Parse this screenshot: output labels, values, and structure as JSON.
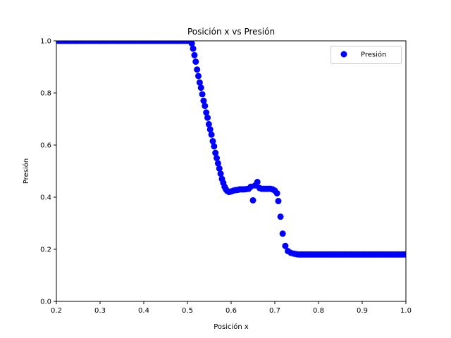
{
  "chart_data": {
    "type": "scatter",
    "title": "Posición x vs Presión",
    "xlabel": "Posición x",
    "ylabel": "Presión",
    "xlim": [
      0.2,
      1.0
    ],
    "ylim": [
      0.0,
      1.0
    ],
    "x_ticks": [
      "0.2",
      "0.3",
      "0.4",
      "0.5",
      "0.6",
      "0.7",
      "0.8",
      "0.9",
      "1.0"
    ],
    "y_ticks": [
      "0.0",
      "0.2",
      "0.4",
      "0.6",
      "0.8",
      "1.0"
    ],
    "grid": false,
    "legend_position": "top-right",
    "marker_color": "#0000ff",
    "series": [
      {
        "name": "Presión",
        "points": [
          [
            0.2,
            1.0
          ],
          [
            0.205,
            1.0
          ],
          [
            0.21,
            1.0
          ],
          [
            0.215,
            1.0
          ],
          [
            0.22,
            1.0
          ],
          [
            0.225,
            1.0
          ],
          [
            0.23,
            1.0
          ],
          [
            0.235,
            1.0
          ],
          [
            0.24,
            1.0
          ],
          [
            0.245,
            1.0
          ],
          [
            0.25,
            1.0
          ],
          [
            0.255,
            1.0
          ],
          [
            0.26,
            1.0
          ],
          [
            0.265,
            1.0
          ],
          [
            0.27,
            1.0
          ],
          [
            0.275,
            1.0
          ],
          [
            0.28,
            1.0
          ],
          [
            0.285,
            1.0
          ],
          [
            0.29,
            1.0
          ],
          [
            0.295,
            1.0
          ],
          [
            0.3,
            1.0
          ],
          [
            0.305,
            1.0
          ],
          [
            0.31,
            1.0
          ],
          [
            0.315,
            1.0
          ],
          [
            0.32,
            1.0
          ],
          [
            0.325,
            1.0
          ],
          [
            0.33,
            1.0
          ],
          [
            0.335,
            1.0
          ],
          [
            0.34,
            1.0
          ],
          [
            0.345,
            1.0
          ],
          [
            0.35,
            1.0
          ],
          [
            0.355,
            1.0
          ],
          [
            0.36,
            1.0
          ],
          [
            0.365,
            1.0
          ],
          [
            0.37,
            1.0
          ],
          [
            0.375,
            1.0
          ],
          [
            0.38,
            1.0
          ],
          [
            0.385,
            1.0
          ],
          [
            0.39,
            1.0
          ],
          [
            0.395,
            1.0
          ],
          [
            0.4,
            1.0
          ],
          [
            0.405,
            1.0
          ],
          [
            0.41,
            1.0
          ],
          [
            0.415,
            1.0
          ],
          [
            0.42,
            1.0
          ],
          [
            0.425,
            1.0
          ],
          [
            0.43,
            1.0
          ],
          [
            0.435,
            1.0
          ],
          [
            0.44,
            1.0
          ],
          [
            0.445,
            1.0
          ],
          [
            0.45,
            1.0
          ],
          [
            0.455,
            1.0
          ],
          [
            0.46,
            1.0
          ],
          [
            0.465,
            1.0
          ],
          [
            0.47,
            1.0
          ],
          [
            0.475,
            1.0
          ],
          [
            0.48,
            1.0
          ],
          [
            0.485,
            1.0
          ],
          [
            0.49,
            1.0
          ],
          [
            0.495,
            1.0
          ],
          [
            0.5,
            1.0
          ],
          [
            0.505,
            1.0
          ],
          [
            0.51,
            0.99
          ],
          [
            0.513,
            0.97
          ],
          [
            0.516,
            0.945
          ],
          [
            0.519,
            0.92
          ],
          [
            0.522,
            0.89
          ],
          [
            0.525,
            0.865
          ],
          [
            0.528,
            0.84
          ],
          [
            0.531,
            0.82
          ],
          [
            0.534,
            0.795
          ],
          [
            0.537,
            0.77
          ],
          [
            0.54,
            0.75
          ],
          [
            0.543,
            0.725
          ],
          [
            0.546,
            0.705
          ],
          [
            0.549,
            0.68
          ],
          [
            0.552,
            0.66
          ],
          [
            0.555,
            0.64
          ],
          [
            0.558,
            0.615
          ],
          [
            0.561,
            0.595
          ],
          [
            0.564,
            0.57
          ],
          [
            0.567,
            0.55
          ],
          [
            0.57,
            0.53
          ],
          [
            0.573,
            0.51
          ],
          [
            0.576,
            0.49
          ],
          [
            0.579,
            0.47
          ],
          [
            0.582,
            0.455
          ],
          [
            0.585,
            0.44
          ],
          [
            0.588,
            0.43
          ],
          [
            0.591,
            0.424
          ],
          [
            0.595,
            0.42
          ],
          [
            0.6,
            0.422
          ],
          [
            0.605,
            0.425
          ],
          [
            0.61,
            0.427
          ],
          [
            0.615,
            0.428
          ],
          [
            0.62,
            0.43
          ],
          [
            0.625,
            0.43
          ],
          [
            0.63,
            0.43
          ],
          [
            0.635,
            0.431
          ],
          [
            0.64,
            0.432
          ],
          [
            0.645,
            0.44
          ],
          [
            0.65,
            0.388
          ],
          [
            0.655,
            0.445
          ],
          [
            0.66,
            0.458
          ],
          [
            0.665,
            0.435
          ],
          [
            0.67,
            0.432
          ],
          [
            0.675,
            0.432
          ],
          [
            0.68,
            0.432
          ],
          [
            0.685,
            0.432
          ],
          [
            0.69,
            0.432
          ],
          [
            0.695,
            0.43
          ],
          [
            0.7,
            0.425
          ],
          [
            0.705,
            0.415
          ],
          [
            0.708,
            0.385
          ],
          [
            0.713,
            0.325
          ],
          [
            0.718,
            0.26
          ],
          [
            0.724,
            0.213
          ],
          [
            0.73,
            0.193
          ],
          [
            0.737,
            0.186
          ],
          [
            0.744,
            0.183
          ],
          [
            0.75,
            0.181
          ],
          [
            0.755,
            0.18
          ],
          [
            0.76,
            0.18
          ],
          [
            0.765,
            0.18
          ],
          [
            0.77,
            0.18
          ],
          [
            0.775,
            0.18
          ],
          [
            0.78,
            0.18
          ],
          [
            0.785,
            0.18
          ],
          [
            0.79,
            0.18
          ],
          [
            0.795,
            0.18
          ],
          [
            0.8,
            0.18
          ],
          [
            0.805,
            0.18
          ],
          [
            0.81,
            0.18
          ],
          [
            0.815,
            0.18
          ],
          [
            0.82,
            0.18
          ],
          [
            0.825,
            0.18
          ],
          [
            0.83,
            0.18
          ],
          [
            0.835,
            0.18
          ],
          [
            0.84,
            0.18
          ],
          [
            0.845,
            0.18
          ],
          [
            0.85,
            0.18
          ],
          [
            0.855,
            0.18
          ],
          [
            0.86,
            0.18
          ],
          [
            0.865,
            0.18
          ],
          [
            0.87,
            0.18
          ],
          [
            0.875,
            0.18
          ],
          [
            0.88,
            0.18
          ],
          [
            0.885,
            0.18
          ],
          [
            0.89,
            0.18
          ],
          [
            0.895,
            0.18
          ],
          [
            0.9,
            0.18
          ],
          [
            0.905,
            0.18
          ],
          [
            0.91,
            0.18
          ],
          [
            0.915,
            0.18
          ],
          [
            0.92,
            0.18
          ],
          [
            0.925,
            0.18
          ],
          [
            0.93,
            0.18
          ],
          [
            0.935,
            0.18
          ],
          [
            0.94,
            0.18
          ],
          [
            0.945,
            0.18
          ],
          [
            0.95,
            0.18
          ],
          [
            0.955,
            0.18
          ],
          [
            0.96,
            0.18
          ],
          [
            0.965,
            0.18
          ],
          [
            0.97,
            0.18
          ],
          [
            0.975,
            0.18
          ],
          [
            0.98,
            0.18
          ],
          [
            0.985,
            0.18
          ],
          [
            0.99,
            0.18
          ],
          [
            0.995,
            0.18
          ],
          [
            1.0,
            0.18
          ]
        ]
      }
    ]
  }
}
